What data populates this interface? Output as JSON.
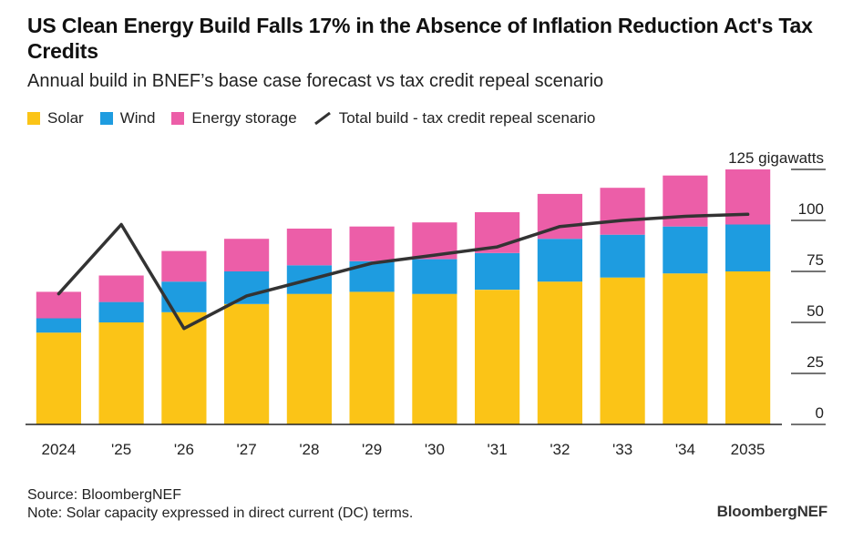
{
  "header": {
    "title": "US Clean Energy Build Falls 17% in the Absence of Inflation Reduction Act's Tax Credits",
    "subtitle": "Annual build in BNEF’s base case forecast vs tax credit repeal scenario"
  },
  "legend": {
    "items": [
      {
        "label": "Solar",
        "color": "#fbc417",
        "kind": "swatch"
      },
      {
        "label": "Wind",
        "color": "#1e9ce0",
        "kind": "swatch"
      },
      {
        "label": "Energy storage",
        "color": "#ec5ea8",
        "kind": "swatch"
      },
      {
        "label": "Total build - tax credit repeal scenario",
        "color": "#333333",
        "kind": "line"
      }
    ]
  },
  "chart_data": {
    "type": "bar",
    "stacked": true,
    "categories": [
      "2024",
      "'25",
      "'26",
      "'27",
      "'28",
      "'29",
      "'30",
      "'31",
      "'32",
      "'33",
      "'34",
      "2035"
    ],
    "series": [
      {
        "name": "Solar",
        "color": "#fbc417",
        "values": [
          45,
          50,
          55,
          59,
          64,
          65,
          64,
          66,
          70,
          72,
          74,
          75
        ]
      },
      {
        "name": "Wind",
        "color": "#1e9ce0",
        "values": [
          7,
          10,
          15,
          16,
          14,
          15,
          17,
          18,
          21,
          21,
          23,
          23
        ]
      },
      {
        "name": "Energy storage",
        "color": "#ec5ea8",
        "values": [
          13,
          13,
          15,
          16,
          18,
          17,
          18,
          20,
          22,
          23,
          25,
          27
        ]
      }
    ],
    "line": {
      "name": "Total build - tax credit repeal scenario",
      "color": "#333333",
      "values": [
        64,
        98,
        47,
        63,
        71,
        79,
        83,
        87,
        97,
        100,
        102,
        103
      ]
    },
    "yaxis": {
      "ticks": [
        0,
        25,
        50,
        75,
        100,
        125
      ],
      "tick_labels": [
        "0",
        "25",
        "50",
        "75",
        "100",
        "125 gigawatts"
      ],
      "ylim": [
        0,
        125
      ],
      "position": "right",
      "grid": false
    },
    "xlabel": "",
    "ylabel": ""
  },
  "footer": {
    "source": "Source: BloombergNEF",
    "note": "Note: Solar capacity expressed in direct current (DC) terms.",
    "brand": "BloombergNEF"
  }
}
